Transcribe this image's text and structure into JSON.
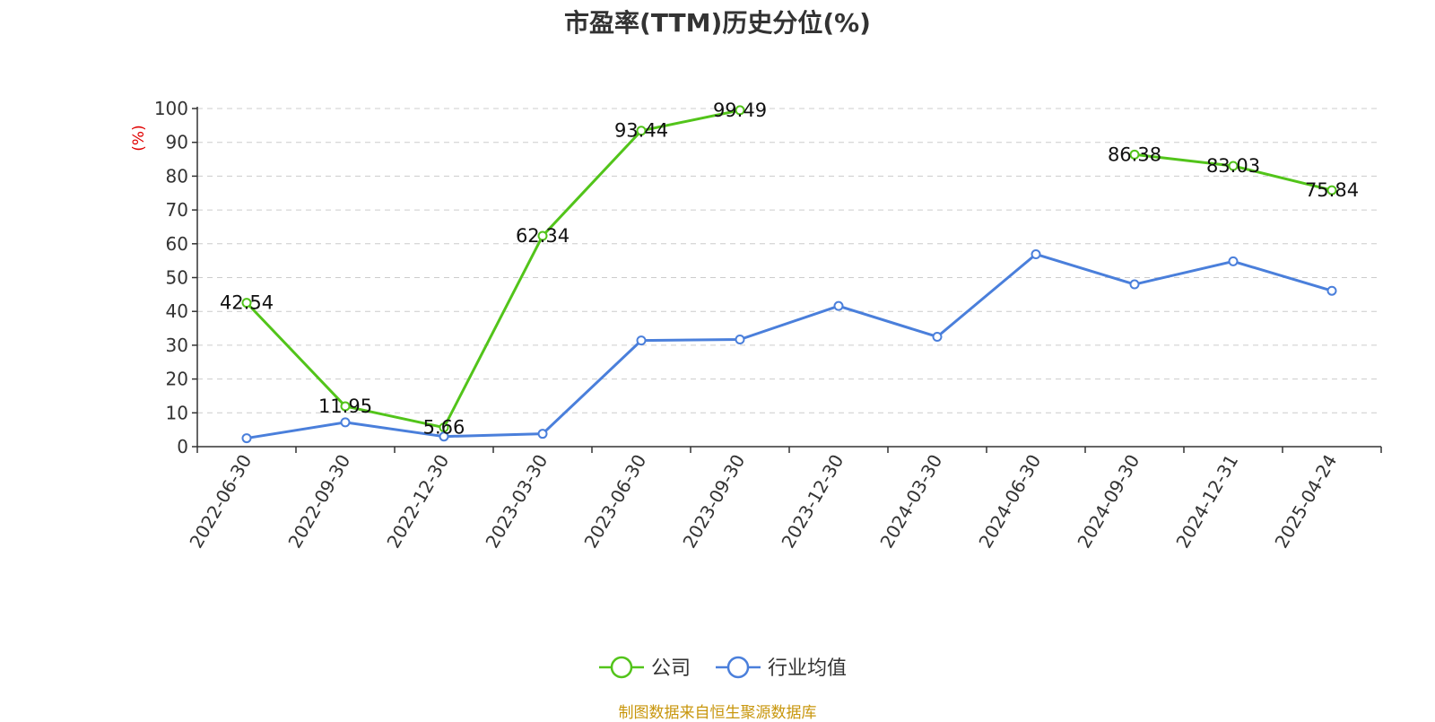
{
  "chart_data": {
    "type": "line",
    "title": "市盈率(TTM)历史分位(%)",
    "ylabel": "(%)",
    "ylim": [
      0,
      100
    ],
    "yticks": [
      0,
      10,
      20,
      30,
      40,
      50,
      60,
      70,
      80,
      90,
      100
    ],
    "categories": [
      "2022-06-30",
      "2022-09-30",
      "2022-12-30",
      "2023-03-30",
      "2023-06-30",
      "2023-09-30",
      "2023-12-30",
      "2024-03-30",
      "2024-06-30",
      "2024-09-30",
      "2024-12-31",
      "2025-04-24"
    ],
    "grid": true,
    "legend_position": "bottom",
    "series": [
      {
        "name": "公司",
        "color": "#52c41a",
        "values": [
          42.54,
          11.95,
          5.66,
          62.34,
          93.44,
          99.49,
          null,
          null,
          null,
          86.38,
          83.03,
          75.84
        ],
        "labels": [
          "42.54",
          "11.95",
          "5.66",
          "62.34",
          "93.44",
          "99.49",
          null,
          null,
          null,
          "86.38",
          "83.03",
          "75.84"
        ]
      },
      {
        "name": "行业均值",
        "color": "#4a7fdb",
        "values": [
          2.5,
          7.2,
          3.0,
          3.8,
          31.4,
          31.7,
          41.6,
          32.5,
          56.9,
          48.0,
          54.8,
          46.1
        ]
      }
    ]
  },
  "footer": {
    "source": "制图数据来自恒生聚源数据库"
  }
}
